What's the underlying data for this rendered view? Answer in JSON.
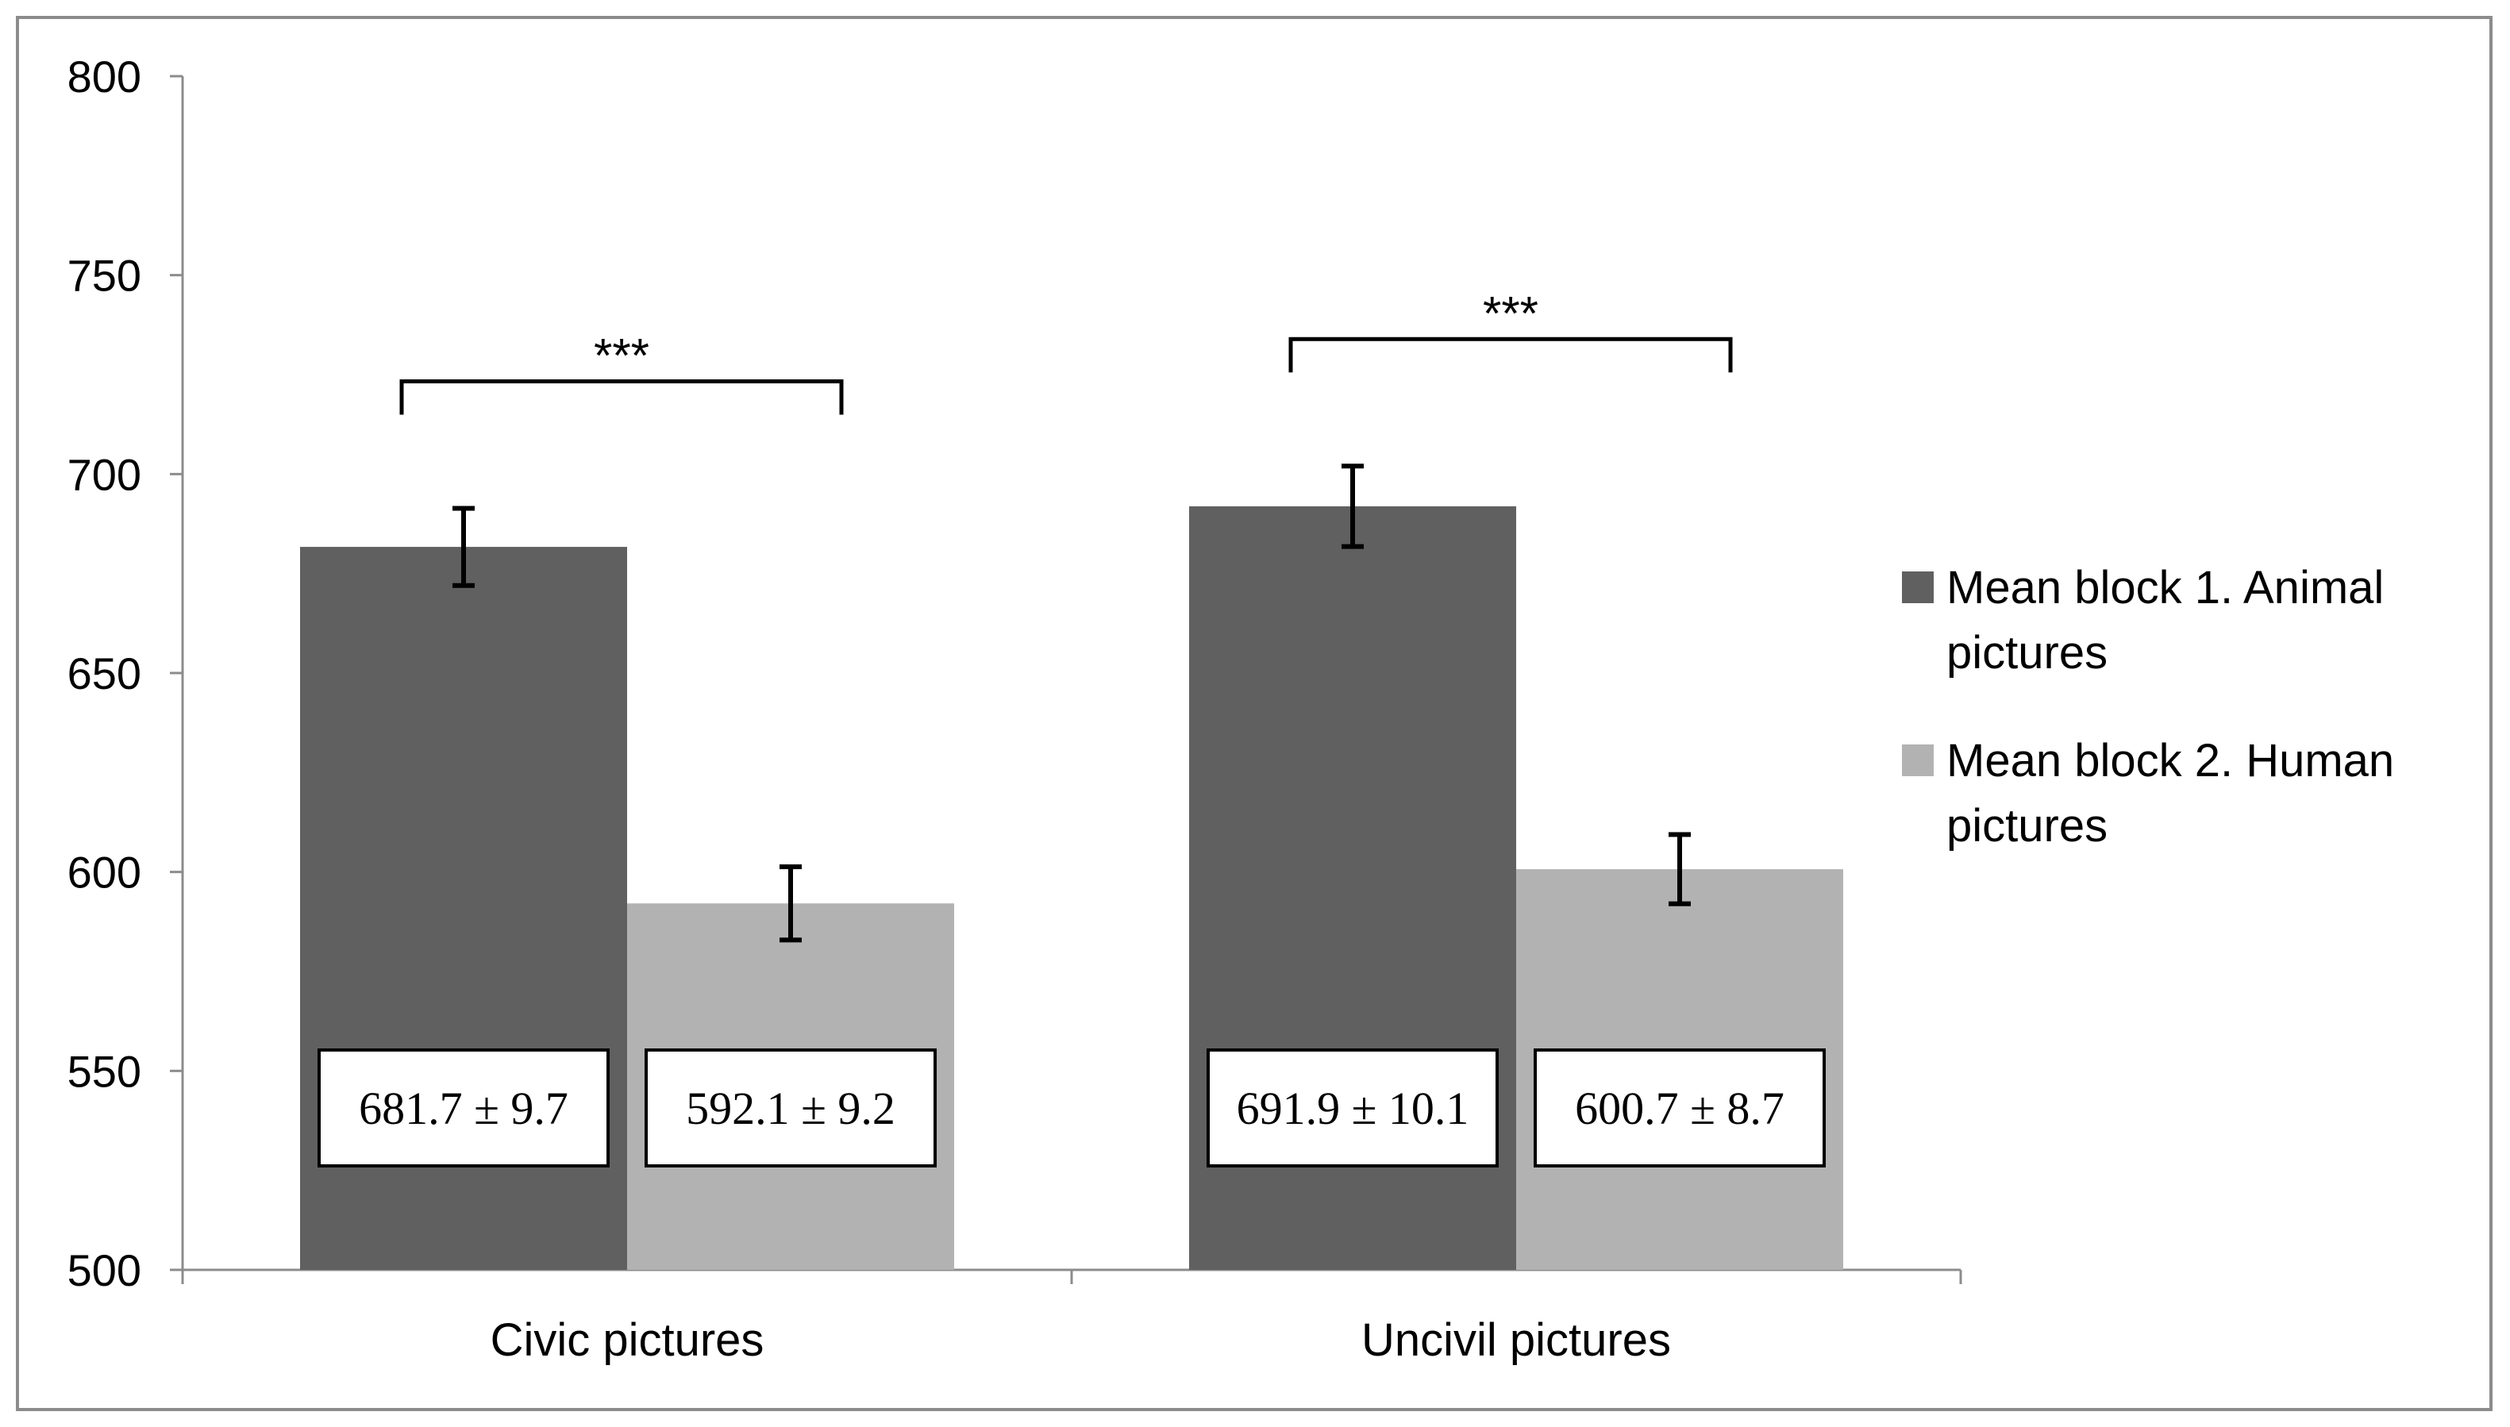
{
  "chart_data": {
    "type": "bar",
    "categories": [
      "Civic pictures",
      "Uncivil pictures"
    ],
    "series": [
      {
        "name": "Mean block 1. Animal pictures",
        "legend_lines": [
          "Mean block 1. Animal",
          "pictures"
        ],
        "color": "#606060",
        "values": [
          681.7,
          691.9
        ],
        "errors": [
          9.7,
          10.1
        ],
        "value_labels": [
          "681.7 ± 9.7",
          "691.9 ± 10.1"
        ]
      },
      {
        "name": "Mean block 2. Human pictures",
        "legend_lines": [
          "Mean block 2. Human",
          "pictures"
        ],
        "color": "#b2b2b2",
        "values": [
          592.1,
          600.7
        ],
        "errors": [
          9.2,
          8.7
        ],
        "value_labels": [
          "592.1 ± 9.2",
          "600.7 ± 8.7"
        ]
      }
    ],
    "ylim": [
      500,
      800
    ],
    "yticks": [
      500,
      550,
      600,
      650,
      700,
      750,
      800
    ],
    "significance": [
      "***",
      "***"
    ],
    "legend_position": "right",
    "grid": false,
    "title": "",
    "xlabel": "",
    "ylabel": ""
  }
}
